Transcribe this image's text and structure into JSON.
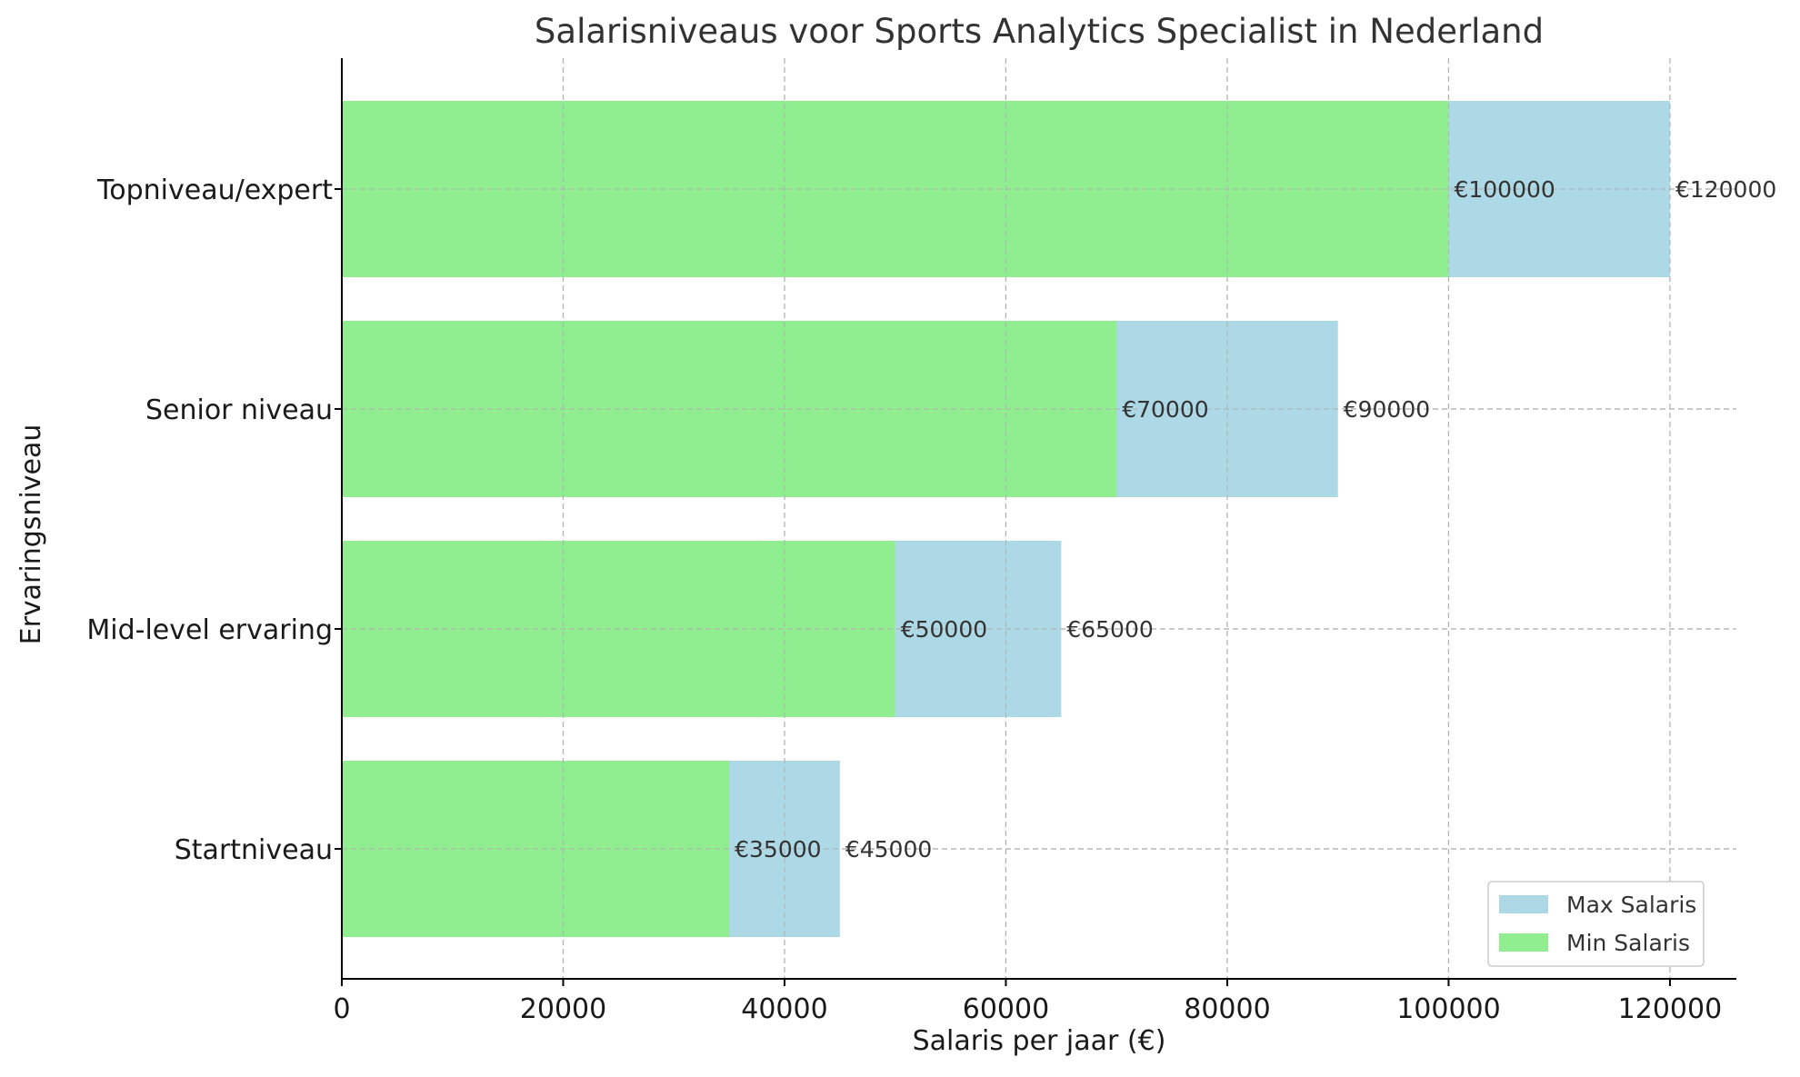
{
  "chart_data": {
    "type": "bar",
    "orientation": "horizontal",
    "stacking": "overlay",
    "title": "Salarisniveaus voor Sports Analytics Specialist in Nederland",
    "xlabel": "Salaris per jaar (€)",
    "ylabel": "Ervaringsniveau",
    "categories": [
      "Startniveau",
      "Mid-level ervaring",
      "Senior niveau",
      "Topniveau/expert"
    ],
    "series": [
      {
        "name": "Max Salaris",
        "values": [
          45000,
          65000,
          90000,
          120000
        ],
        "color": "#add8e6"
      },
      {
        "name": "Min Salaris",
        "values": [
          35000,
          50000,
          70000,
          100000
        ],
        "color": "#90ee90"
      }
    ],
    "data_labels": {
      "max": [
        "€45000",
        "€65000",
        "€90000",
        "€120000"
      ],
      "min": [
        "€35000",
        "€50000",
        "€70000",
        "€100000"
      ]
    },
    "xticks": [
      "0",
      "20000",
      "40000",
      "60000",
      "80000",
      "100000",
      "120000"
    ],
    "xtick_values": [
      0,
      20000,
      40000,
      60000,
      80000,
      100000,
      120000
    ],
    "xlim": [
      0,
      126000
    ],
    "grid": true,
    "legend_position": "bottom-right"
  }
}
